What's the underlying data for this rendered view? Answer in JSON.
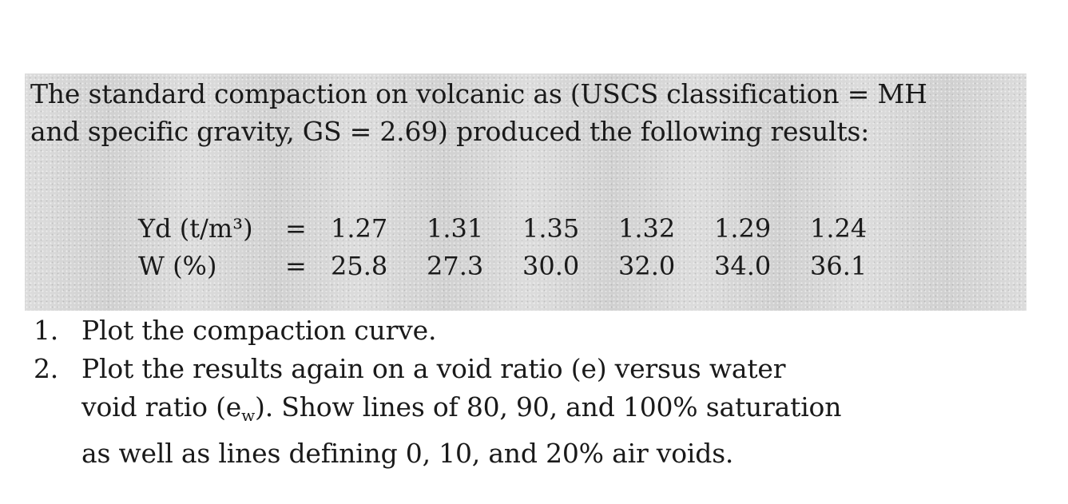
{
  "intro": {
    "line1": "The standard compaction on volcanic as (USCS classification = MH",
    "line2": "and specific gravity, GS = 2.69) produced the following results:"
  },
  "table": {
    "row1": {
      "label": "Yd (t/m³)",
      "equals": "=",
      "values": [
        "1.27",
        "1.31",
        "1.35",
        "1.32",
        "1.29",
        "1.24"
      ]
    },
    "row2": {
      "label": "W (%)",
      "equals": "=",
      "values": [
        "25.8",
        "27.3",
        "30.0",
        "32.0",
        "34.0",
        "36.1"
      ]
    }
  },
  "tasks": [
    {
      "number": "1.",
      "line1": "Plot the compaction curve."
    },
    {
      "number": "2.",
      "line1": "Plot the results again on a void ratio (e) versus water",
      "line2_prefix": "void ratio (e",
      "line2_sub": "w",
      "line2_suffix": "). Show lines of 80, 90, and 100% saturation",
      "line3": "as well as lines defining 0, 10, and 20% air voids."
    }
  ]
}
